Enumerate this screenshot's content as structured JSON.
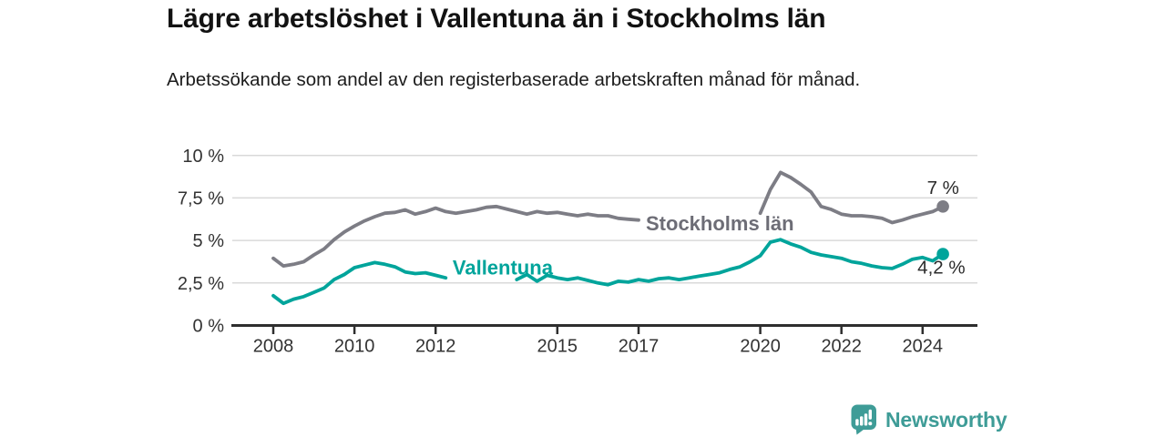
{
  "header": {
    "title": "Lägre arbetslöshet i Vallentuna än i Stockholms län",
    "subtitle": "Arbetssökande som andel av den registerbaserade arbetskraften månad för månad."
  },
  "chart_data": {
    "type": "line",
    "title": "Lägre arbetslöshet i Vallentuna än i Stockholms län",
    "subtitle": "Arbetssökande som andel av den registerbaserade arbetskraften månad för månad.",
    "xlabel": "",
    "ylabel": "",
    "x_unit": "year",
    "x_start": 2008.0,
    "x_step": 0.25,
    "xlim": [
      2007.0,
      2025.35
    ],
    "ylim": [
      0,
      10
    ],
    "grid": true,
    "legend_position": "inline",
    "y_ticks": [
      {
        "label": "10 %",
        "value": 10
      },
      {
        "label": "7,5 %",
        "value": 7.5
      },
      {
        "label": "5 %",
        "value": 5
      },
      {
        "label": "2,5 %",
        "value": 2.5
      },
      {
        "label": "0 %",
        "value": 0
      }
    ],
    "x_ticks": [
      {
        "label": "2008",
        "value": 2008
      },
      {
        "label": "2010",
        "value": 2010
      },
      {
        "label": "2012",
        "value": 2012
      },
      {
        "label": "2015",
        "value": 2015
      },
      {
        "label": "2017",
        "value": 2017
      },
      {
        "label": "2020",
        "value": 2020
      },
      {
        "label": "2022",
        "value": 2022
      },
      {
        "label": "2024",
        "value": 2024
      }
    ],
    "series": [
      {
        "name": "Stockholms län",
        "color": "#7d7d85",
        "label_color": "#6d6d76",
        "inline_label": {
          "text": "Stockholms län",
          "x_year": 2017.18,
          "y_pct": 5.6,
          "anchor": "start"
        },
        "end_label": {
          "text": "7 %",
          "x_year": 2024.9,
          "y_pct": 7.75,
          "anchor": "end"
        },
        "end_value": 7.0,
        "values": [
          3.95,
          3.5,
          3.6,
          3.75,
          4.15,
          4.5,
          5.05,
          5.5,
          5.85,
          6.15,
          6.4,
          6.6,
          6.65,
          6.8,
          6.55,
          6.7,
          6.9,
          6.7,
          6.6,
          6.7,
          6.8,
          6.95,
          7.0,
          6.85,
          6.7,
          6.55,
          6.7,
          6.6,
          6.65,
          6.55,
          6.45,
          6.55,
          6.45,
          6.45,
          6.3,
          6.25,
          6.2,
          null,
          null,
          null,
          null,
          null,
          null,
          null,
          null,
          null,
          null,
          null,
          6.6,
          8.0,
          9.0,
          8.7,
          8.3,
          7.85,
          7.0,
          6.82,
          6.55,
          6.45,
          6.45,
          6.4,
          6.3,
          6.05,
          6.2,
          6.4,
          6.55,
          6.7,
          7.0
        ]
      },
      {
        "name": "Vallentuna",
        "color": "#00a49b",
        "label_color": "#00a49b",
        "inline_label": {
          "text": "Vallentuna",
          "x_year": 2012.42,
          "y_pct": 3.0,
          "anchor": "start"
        },
        "end_label": {
          "text": "4,2 %",
          "x_year": 2025.05,
          "y_pct": 3.05,
          "anchor": "end"
        },
        "end_value": 4.2,
        "values": [
          1.75,
          1.3,
          1.55,
          1.7,
          1.95,
          2.2,
          2.7,
          3.0,
          3.4,
          3.55,
          3.7,
          3.6,
          3.45,
          3.15,
          3.05,
          3.1,
          2.95,
          2.8,
          null,
          null,
          null,
          null,
          null,
          null,
          2.7,
          3.0,
          2.6,
          2.95,
          2.8,
          2.7,
          2.8,
          2.65,
          2.5,
          2.4,
          2.6,
          2.55,
          2.7,
          2.6,
          2.75,
          2.8,
          2.7,
          2.8,
          2.9,
          3.0,
          3.1,
          3.3,
          3.45,
          3.75,
          4.1,
          4.9,
          5.05,
          4.8,
          4.6,
          4.3,
          4.15,
          4.05,
          3.95,
          3.75,
          3.65,
          3.5,
          3.4,
          3.35,
          3.6,
          3.9,
          4.0,
          3.8,
          4.2
        ]
      }
    ],
    "style": {
      "grid_color": "#d9d9d9",
      "axis_color": "#2e2e2e",
      "tick_label_color": "#333333",
      "end_label_color": "#2b2b2b"
    }
  },
  "footer": {
    "brand": "Newsworthy",
    "logo_icon": "bar-chart-speech-bubble-icon",
    "brand_color": "#3e9c97"
  }
}
